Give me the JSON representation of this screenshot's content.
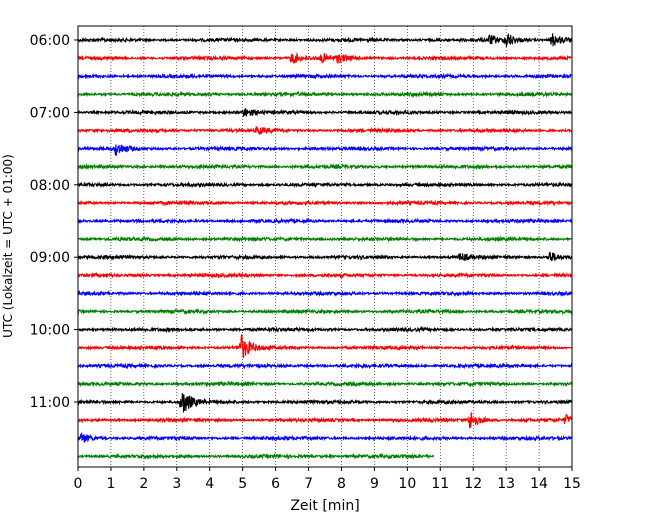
{
  "chart_data": {
    "type": "line",
    "xlabel": "Zeit  [min]",
    "ylabel": "UTC (Lokalzeit = UTC + 01:00)",
    "xlim": [
      0,
      15
    ],
    "x_ticks": [
      0,
      1,
      2,
      3,
      4,
      5,
      6,
      7,
      8,
      9,
      10,
      11,
      12,
      13,
      14,
      15
    ],
    "x_tick_labels": [
      "0",
      "1",
      "2",
      "3",
      "4",
      "5",
      "6",
      "7",
      "8",
      "9",
      "10",
      "11",
      "12",
      "13",
      "14",
      "15"
    ],
    "y_tick_labels": [
      "06:00",
      "07:00",
      "08:00",
      "09:00",
      "10:00",
      "11:00"
    ],
    "grid": "vertical dotted",
    "colors": [
      "#000000",
      "#ff0000",
      "#0000ff",
      "#008000"
    ],
    "trace_start": "06:00",
    "trace_interval_min": 15,
    "last_trace_end_min": 10.8,
    "events": [
      {
        "trace": 0,
        "t": 12.5,
        "amp": 0.55
      },
      {
        "trace": 0,
        "t": 13.0,
        "amp": 0.9
      },
      {
        "trace": 0,
        "t": 14.4,
        "amp": 0.85
      },
      {
        "trace": 1,
        "t": 6.5,
        "amp": 0.7
      },
      {
        "trace": 1,
        "t": 7.4,
        "amp": 0.5
      },
      {
        "trace": 1,
        "t": 7.9,
        "amp": 0.45
      },
      {
        "trace": 4,
        "t": 5.05,
        "amp": 0.5
      },
      {
        "trace": 5,
        "t": 5.45,
        "amp": 0.45
      },
      {
        "trace": 6,
        "t": 1.15,
        "amp": 0.8
      },
      {
        "trace": 12,
        "t": 11.6,
        "amp": 0.45
      },
      {
        "trace": 12,
        "t": 14.3,
        "amp": 0.75
      },
      {
        "trace": 17,
        "t": 4.95,
        "amp": 1.6
      },
      {
        "trace": 20,
        "t": 3.15,
        "amp": 1.7
      },
      {
        "trace": 21,
        "t": 11.9,
        "amp": 1.2
      },
      {
        "trace": 21,
        "t": 14.8,
        "amp": 0.5
      },
      {
        "trace": 22,
        "t": 0.1,
        "amp": 0.7
      }
    ]
  }
}
